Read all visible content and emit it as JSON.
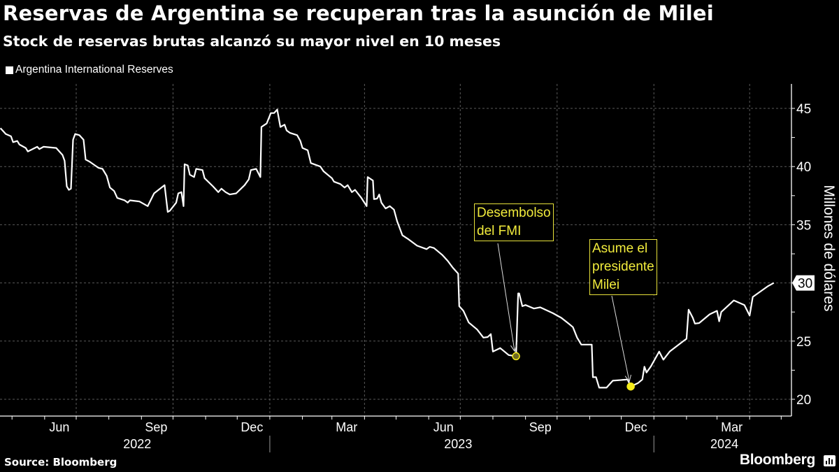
{
  "header": {
    "title": "Reservas de Argentina se recuperan tras la asunción de Milei",
    "subtitle": "Stock de reservas brutas alcanzó su mayor nivel en 10 meses"
  },
  "legend": {
    "label": "Argentina International Reserves"
  },
  "footer": {
    "source": "Source: Bloomberg",
    "brand": "Bloomberg",
    "brand_icon": "bar-chart-icon"
  },
  "colors": {
    "background": "#000000",
    "line": "#ffffff",
    "annotation": "#f2ec3c",
    "grid": "#5a5a5a"
  },
  "chart_data": {
    "type": "line",
    "title": "Reservas de Argentina se recuperan tras la asunción de Milei",
    "subtitle": "Stock de reservas brutas alcanzó su mayor nivel en 10 meses",
    "xlabel": "",
    "ylabel": "Millones de dólares",
    "ylim": [
      18.6,
      47.1
    ],
    "xlim": [
      "2022-04-20",
      "2024-05-30"
    ],
    "grid": true,
    "legend_position": "top-left",
    "y_ticks": [
      20,
      25,
      30,
      35,
      40,
      45
    ],
    "y_minor_ticks": [
      22.5,
      27.5,
      32.5,
      37.5,
      42.5
    ],
    "last_value_label": "30",
    "x_gridlines": [
      "2022-07-01",
      "2022-10-01",
      "2023-01-01",
      "2023-04-01",
      "2023-07-01",
      "2023-10-01",
      "2024-01-01",
      "2024-04-01"
    ],
    "x_ticks": [
      {
        "label": "Jun",
        "date": "2022-06-15"
      },
      {
        "label": "Sep",
        "date": "2022-09-15"
      },
      {
        "label": "Dec",
        "date": "2022-12-15"
      },
      {
        "label": "Mar",
        "date": "2023-03-15"
      },
      {
        "label": "Jun",
        "date": "2023-06-15"
      },
      {
        "label": "Sep",
        "date": "2023-09-15"
      },
      {
        "label": "Dec",
        "date": "2023-12-15"
      },
      {
        "label": "Mar",
        "date": "2024-03-15"
      }
    ],
    "year_labels": [
      {
        "label": "2022",
        "date": "2022-08-28"
      },
      {
        "label": "2023",
        "date": "2023-06-29"
      },
      {
        "label": "2024",
        "date": "2024-03-08"
      }
    ],
    "year_separators": [
      "2023-01-01",
      "2024-01-01"
    ],
    "series": [
      {
        "name": "Argentina International Reserves",
        "points": [
          [
            "2022-04-20",
            43.3
          ],
          [
            "2022-04-23",
            43.0
          ],
          [
            "2022-04-25",
            42.8
          ],
          [
            "2022-04-30",
            42.6
          ],
          [
            "2022-05-02",
            42.1
          ],
          [
            "2022-05-06",
            42.2
          ],
          [
            "2022-05-08",
            41.9
          ],
          [
            "2022-05-14",
            41.6
          ],
          [
            "2022-05-16",
            41.3
          ],
          [
            "2022-05-25",
            41.7
          ],
          [
            "2022-05-27",
            41.5
          ],
          [
            "2022-05-31",
            41.7
          ],
          [
            "2022-06-12",
            41.6
          ],
          [
            "2022-06-15",
            41.3
          ],
          [
            "2022-06-18",
            41.0
          ],
          [
            "2022-06-20",
            40.5
          ],
          [
            "2022-06-22",
            38.3
          ],
          [
            "2022-06-24",
            38.0
          ],
          [
            "2022-06-26",
            38.1
          ],
          [
            "2022-06-28",
            42.3
          ],
          [
            "2022-06-30",
            42.8
          ],
          [
            "2022-07-04",
            42.7
          ],
          [
            "2022-07-08",
            42.3
          ],
          [
            "2022-07-10",
            40.6
          ],
          [
            "2022-07-14",
            40.4
          ],
          [
            "2022-07-22",
            39.9
          ],
          [
            "2022-07-26",
            39.8
          ],
          [
            "2022-07-30",
            39.2
          ],
          [
            "2022-08-02",
            38.2
          ],
          [
            "2022-08-06",
            37.9
          ],
          [
            "2022-08-09",
            37.3
          ],
          [
            "2022-08-16",
            37.1
          ],
          [
            "2022-08-19",
            36.9
          ],
          [
            "2022-08-21",
            37.1
          ],
          [
            "2022-08-30",
            37.0
          ],
          [
            "2022-09-07",
            36.6
          ],
          [
            "2022-09-13",
            37.7
          ],
          [
            "2022-09-23",
            38.4
          ],
          [
            "2022-09-26",
            36.1
          ],
          [
            "2022-09-28",
            36.2
          ],
          [
            "2022-10-04",
            36.9
          ],
          [
            "2022-10-06",
            37.7
          ],
          [
            "2022-10-09",
            37.8
          ],
          [
            "2022-10-11",
            36.6
          ],
          [
            "2022-10-12",
            40.2
          ],
          [
            "2022-10-15",
            40.1
          ],
          [
            "2022-10-17",
            39.3
          ],
          [
            "2022-10-21",
            39.1
          ],
          [
            "2022-10-23",
            39.8
          ],
          [
            "2022-10-29",
            39.7
          ],
          [
            "2022-10-31",
            39.0
          ],
          [
            "2022-11-08",
            38.3
          ],
          [
            "2022-11-13",
            37.8
          ],
          [
            "2022-11-16",
            38.1
          ],
          [
            "2022-11-20",
            37.8
          ],
          [
            "2022-11-24",
            37.6
          ],
          [
            "2022-11-30",
            37.7
          ],
          [
            "2022-12-08",
            38.4
          ],
          [
            "2022-12-12",
            38.9
          ],
          [
            "2022-12-14",
            39.7
          ],
          [
            "2022-12-19",
            39.8
          ],
          [
            "2022-12-23",
            39.1
          ],
          [
            "2022-12-24",
            43.4
          ],
          [
            "2022-12-29",
            43.7
          ],
          [
            "2023-01-02",
            44.6
          ],
          [
            "2023-01-05",
            44.6
          ],
          [
            "2023-01-08",
            44.9
          ],
          [
            "2023-01-09",
            44.4
          ],
          [
            "2023-01-11",
            43.4
          ],
          [
            "2023-01-15",
            43.6
          ],
          [
            "2023-01-17",
            43.1
          ],
          [
            "2023-01-20",
            42.9
          ],
          [
            "2023-01-27",
            42.7
          ],
          [
            "2023-01-30",
            42.2
          ],
          [
            "2023-02-01",
            41.6
          ],
          [
            "2023-02-06",
            41.4
          ],
          [
            "2023-02-09",
            40.3
          ],
          [
            "2023-02-18",
            40.0
          ],
          [
            "2023-02-21",
            39.6
          ],
          [
            "2023-03-01",
            39.0
          ],
          [
            "2023-03-03",
            38.7
          ],
          [
            "2023-03-09",
            38.5
          ],
          [
            "2023-03-13",
            38.2
          ],
          [
            "2023-03-16",
            38.4
          ],
          [
            "2023-03-20",
            37.8
          ],
          [
            "2023-03-23",
            38.0
          ],
          [
            "2023-03-29",
            37.3
          ],
          [
            "2023-04-03",
            36.6
          ],
          [
            "2023-04-04",
            39.1
          ],
          [
            "2023-04-09",
            38.8
          ],
          [
            "2023-04-10",
            37.2
          ],
          [
            "2023-04-13",
            37.25
          ],
          [
            "2023-04-15",
            37.6
          ],
          [
            "2023-04-17",
            36.9
          ],
          [
            "2023-04-21",
            36.4
          ],
          [
            "2023-04-25",
            36.6
          ],
          [
            "2023-04-29",
            36.3
          ],
          [
            "2023-05-02",
            35.3
          ],
          [
            "2023-05-07",
            34.1
          ],
          [
            "2023-05-12",
            33.8
          ],
          [
            "2023-05-21",
            33.2
          ],
          [
            "2023-05-30",
            32.9
          ],
          [
            "2023-06-02",
            33.1
          ],
          [
            "2023-06-06",
            33.0
          ],
          [
            "2023-06-14",
            32.4
          ],
          [
            "2023-06-19",
            31.9
          ],
          [
            "2023-06-24",
            31.3
          ],
          [
            "2023-06-29",
            30.8
          ],
          [
            "2023-06-30",
            28.0
          ],
          [
            "2023-07-04",
            27.6
          ],
          [
            "2023-07-09",
            26.6
          ],
          [
            "2023-07-17",
            26.0
          ],
          [
            "2023-07-23",
            25.3
          ],
          [
            "2023-07-27",
            25.35
          ],
          [
            "2023-07-30",
            25.6
          ],
          [
            "2023-08-01",
            24.1
          ],
          [
            "2023-08-08",
            24.4
          ],
          [
            "2023-08-16",
            23.8
          ],
          [
            "2023-08-23",
            23.7
          ],
          [
            "2023-08-25",
            29.1
          ],
          [
            "2023-08-26",
            29.1
          ],
          [
            "2023-08-29",
            28.0
          ],
          [
            "2023-09-01",
            28.1
          ],
          [
            "2023-09-09",
            27.8
          ],
          [
            "2023-09-15",
            27.9
          ],
          [
            "2023-09-27",
            27.4
          ],
          [
            "2023-10-05",
            27.0
          ],
          [
            "2023-10-12",
            26.5
          ],
          [
            "2023-10-16",
            26.2
          ],
          [
            "2023-10-20",
            25.3
          ],
          [
            "2023-10-24",
            24.7
          ],
          [
            "2023-11-03",
            24.7
          ],
          [
            "2023-11-04",
            21.9
          ],
          [
            "2023-11-07",
            21.9
          ],
          [
            "2023-11-10",
            21.0
          ],
          [
            "2023-11-17",
            21.0
          ],
          [
            "2023-11-23",
            21.6
          ],
          [
            "2023-12-07",
            21.7
          ],
          [
            "2023-12-10",
            21.1
          ],
          [
            "2023-12-17",
            21.4
          ],
          [
            "2023-12-21",
            21.7
          ],
          [
            "2023-12-23",
            22.8
          ],
          [
            "2023-12-25",
            22.3
          ],
          [
            "2023-12-29",
            22.8
          ],
          [
            "2024-01-06",
            24.1
          ],
          [
            "2024-01-10",
            23.4
          ],
          [
            "2024-01-16",
            24.1
          ],
          [
            "2024-01-29",
            25.0
          ],
          [
            "2024-02-01",
            25.2
          ],
          [
            "2024-02-03",
            27.7
          ],
          [
            "2024-02-07",
            27.0
          ],
          [
            "2024-02-09",
            26.5
          ],
          [
            "2024-02-13",
            26.55
          ],
          [
            "2024-02-23",
            27.3
          ],
          [
            "2024-03-01",
            27.6
          ],
          [
            "2024-03-03",
            26.7
          ],
          [
            "2024-03-05",
            27.5
          ],
          [
            "2024-03-17",
            28.5
          ],
          [
            "2024-03-27",
            28.1
          ],
          [
            "2024-04-01",
            27.2
          ],
          [
            "2024-04-04",
            28.8
          ],
          [
            "2024-04-18",
            29.7
          ],
          [
            "2024-04-24",
            30.0
          ]
        ]
      }
    ],
    "annotations": [
      {
        "id": "fmi",
        "text": "Desembolso\ndel FMI",
        "date": "2023-08-23",
        "value": 23.7,
        "marker": "hollow"
      },
      {
        "id": "milei",
        "text": "Asume el\npresidente\nMilei",
        "date": "2023-12-10",
        "value": 21.1,
        "marker": "filled"
      }
    ]
  }
}
